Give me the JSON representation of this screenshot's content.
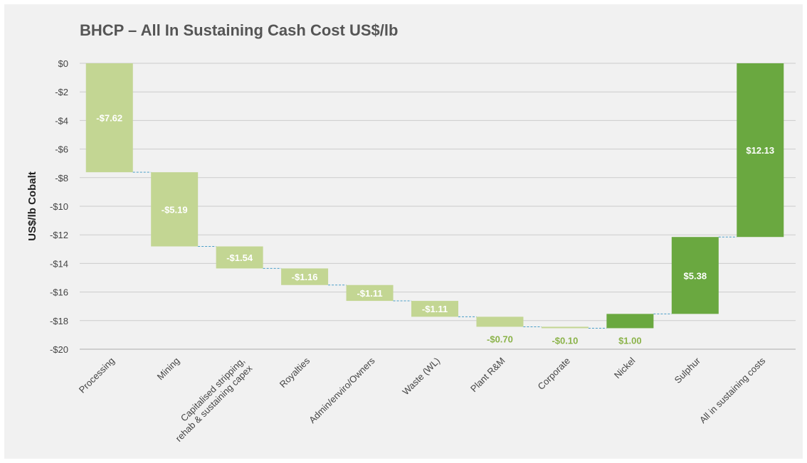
{
  "chart_data": {
    "type": "bar",
    "subtype": "waterfall",
    "title": "BHCP – All In Sustaining Cash Cost US$/lb",
    "ylabel": "US$/lb Cobalt",
    "ylim": [
      -20,
      0
    ],
    "y_ticks": [
      "$0",
      "-$2",
      "-$4",
      "-$6",
      "-$8",
      "-$10",
      "-$12",
      "-$14",
      "-$16",
      "-$18",
      "-$20"
    ],
    "y_tick_values": [
      0,
      -2,
      -4,
      -6,
      -8,
      -10,
      -12,
      -14,
      -16,
      -18,
      -20
    ],
    "grid": true,
    "categories": [
      [
        "Processing"
      ],
      [
        "Mining"
      ],
      [
        "Capitalised stripping,",
        "rehab & sustaining capex"
      ],
      [
        "Royalties"
      ],
      [
        "Admin/enviro/Owners"
      ],
      [
        "Waste (WL)"
      ],
      [
        "Plant R&M"
      ],
      [
        "Corporate"
      ],
      [
        "Nickel"
      ],
      [
        "Sulphur"
      ],
      [
        "All in sustaining costs"
      ]
    ],
    "values": [
      -7.62,
      -5.19,
      -1.54,
      -1.16,
      -1.11,
      -1.11,
      -0.7,
      -0.1,
      1.0,
      5.38,
      12.13
    ],
    "data_labels": [
      "-$7.62",
      "-$5.19",
      "-$1.54",
      "-$1.16",
      "-$1.11",
      "-$1.11",
      "-$0.70",
      "-$0.10",
      "$1.00",
      "$5.38",
      "$12.13"
    ],
    "colors": {
      "cost": "#c3d693",
      "credit": "#6aa840",
      "total": "#6aa840",
      "connector": "#4a9ec8",
      "grid": "#cccccc",
      "cost_label_outside": "#8bb34a",
      "label_inside": "#ffffff"
    }
  }
}
